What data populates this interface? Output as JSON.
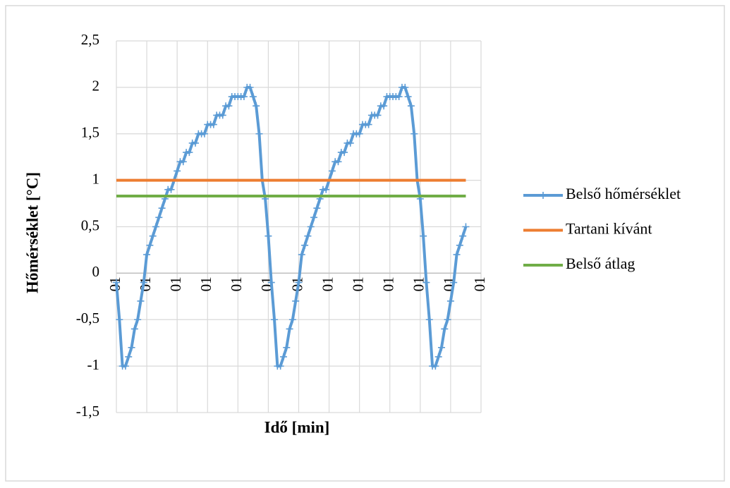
{
  "chart_data": {
    "type": "line",
    "x_label": "Idő [min]",
    "y_label": "Hőmérséklet [°C]",
    "categories": [
      "01",
      null,
      null,
      null,
      null,
      null,
      null,
      null,
      null,
      null,
      "01",
      null,
      null,
      null,
      null,
      null,
      null,
      null,
      null,
      null,
      "01",
      null,
      null,
      null,
      null,
      null,
      null,
      null,
      null,
      null,
      "01",
      null,
      null,
      null,
      null,
      null,
      null,
      null,
      null,
      null,
      "01",
      null,
      null,
      null,
      null,
      null,
      null,
      null,
      null,
      null,
      "01",
      null,
      null,
      null,
      null,
      null,
      null,
      null,
      null,
      null,
      "01",
      null,
      null,
      null,
      null,
      null,
      null,
      null,
      null,
      null,
      "01",
      null,
      null,
      null,
      null,
      null,
      null,
      null,
      null,
      null,
      "01",
      null,
      null,
      null,
      null,
      null,
      null,
      null,
      null,
      null,
      "01",
      null,
      null,
      null,
      null,
      null,
      null,
      null,
      null,
      null,
      "01",
      null,
      null,
      null,
      null,
      null,
      null,
      null,
      null,
      null,
      "01",
      null,
      null,
      null,
      null,
      null,
      null,
      null,
      null,
      null,
      "01"
    ],
    "series": [
      {
        "name": "Belső hőmérséklet",
        "color": "#5b9bd5",
        "marker": "plus",
        "values": [
          -0.1,
          -0.5,
          -1,
          -1,
          -0.9,
          -0.8,
          -0.6,
          -0.5,
          -0.3,
          -0.1,
          0.2,
          0.3,
          0.4,
          0.5,
          0.6,
          0.7,
          0.8,
          0.9,
          0.9,
          1,
          1.1,
          1.2,
          1.2,
          1.3,
          1.3,
          1.4,
          1.4,
          1.5,
          1.5,
          1.5,
          1.6,
          1.6,
          1.6,
          1.7,
          1.7,
          1.7,
          1.8,
          1.8,
          1.9,
          1.9,
          1.9,
          1.9,
          1.9,
          2,
          2,
          1.9,
          1.8,
          1.5,
          1,
          0.8,
          0.4,
          -0.1,
          -0.5,
          -1,
          -1,
          -0.9,
          -0.8,
          -0.6,
          -0.5,
          -0.3,
          -0.1,
          0.2,
          0.3,
          0.4,
          0.5,
          0.6,
          0.7,
          0.8,
          0.9,
          0.9,
          1,
          1.1,
          1.2,
          1.2,
          1.3,
          1.3,
          1.4,
          1.4,
          1.5,
          1.5,
          1.5,
          1.6,
          1.6,
          1.6,
          1.7,
          1.7,
          1.7,
          1.8,
          1.8,
          1.9,
          1.9,
          1.9,
          1.9,
          1.9,
          2,
          2,
          1.9,
          1.8,
          1.5,
          1,
          0.8,
          0.4,
          -0.1,
          -0.5,
          -1,
          -1,
          -0.9,
          -0.8,
          -0.6,
          -0.5,
          -0.3,
          -0.1,
          0.2,
          0.3,
          0.4,
          0.5,
          null,
          null,
          null,
          null,
          null
        ]
      },
      {
        "name": "Tartani kívánt",
        "color": "#ed7d31",
        "values": [
          1,
          1,
          1,
          1,
          1,
          1,
          1,
          1,
          1,
          1,
          1,
          1,
          1,
          1,
          1,
          1,
          1,
          1,
          1,
          1,
          1,
          1,
          1,
          1,
          1,
          1,
          1,
          1,
          1,
          1,
          1,
          1,
          1,
          1,
          1,
          1,
          1,
          1,
          1,
          1,
          1,
          1,
          1,
          1,
          1,
          1,
          1,
          1,
          1,
          1,
          1,
          1,
          1,
          1,
          1,
          1,
          1,
          1,
          1,
          1,
          1,
          1,
          1,
          1,
          1,
          1,
          1,
          1,
          1,
          1,
          1,
          1,
          1,
          1,
          1,
          1,
          1,
          1,
          1,
          1,
          1,
          1,
          1,
          1,
          1,
          1,
          1,
          1,
          1,
          1,
          1,
          1,
          1,
          1,
          1,
          1,
          1,
          1,
          1,
          1,
          1,
          1,
          1,
          1,
          1,
          1,
          1,
          1,
          1,
          1,
          1,
          1,
          1,
          1,
          1,
          1,
          null,
          null,
          null,
          null,
          null
        ]
      },
      {
        "name": "Belső átlag",
        "color": "#70ad47",
        "values": [
          0.83,
          0.83,
          0.83,
          0.83,
          0.83,
          0.83,
          0.83,
          0.83,
          0.83,
          0.83,
          0.83,
          0.83,
          0.83,
          0.83,
          0.83,
          0.83,
          0.83,
          0.83,
          0.83,
          0.83,
          0.83,
          0.83,
          0.83,
          0.83,
          0.83,
          0.83,
          0.83,
          0.83,
          0.83,
          0.83,
          0.83,
          0.83,
          0.83,
          0.83,
          0.83,
          0.83,
          0.83,
          0.83,
          0.83,
          0.83,
          0.83,
          0.83,
          0.83,
          0.83,
          0.83,
          0.83,
          0.83,
          0.83,
          0.83,
          0.83,
          0.83,
          0.83,
          0.83,
          0.83,
          0.83,
          0.83,
          0.83,
          0.83,
          0.83,
          0.83,
          0.83,
          0.83,
          0.83,
          0.83,
          0.83,
          0.83,
          0.83,
          0.83,
          0.83,
          0.83,
          0.83,
          0.83,
          0.83,
          0.83,
          0.83,
          0.83,
          0.83,
          0.83,
          0.83,
          0.83,
          0.83,
          0.83,
          0.83,
          0.83,
          0.83,
          0.83,
          0.83,
          0.83,
          0.83,
          0.83,
          0.83,
          0.83,
          0.83,
          0.83,
          0.83,
          0.83,
          0.83,
          0.83,
          0.83,
          0.83,
          0.83,
          0.83,
          0.83,
          0.83,
          0.83,
          0.83,
          0.83,
          0.83,
          0.83,
          0.83,
          0.83,
          0.83,
          0.83,
          0.83,
          0.83,
          0.83,
          null,
          null,
          null,
          null,
          null
        ]
      }
    ],
    "ylim": [
      -1.5,
      2.5
    ],
    "yticks": [
      {
        "value": -1.5,
        "label": "-1,5"
      },
      -1,
      {
        "value": -0.5,
        "label": "-0,5"
      },
      0,
      {
        "value": 0.5,
        "label": "0,5"
      },
      1,
      {
        "value": 1.5,
        "label": "1,5"
      },
      2,
      {
        "value": 2.5,
        "label": "2,5"
      }
    ],
    "grid": true,
    "legend": "right"
  }
}
